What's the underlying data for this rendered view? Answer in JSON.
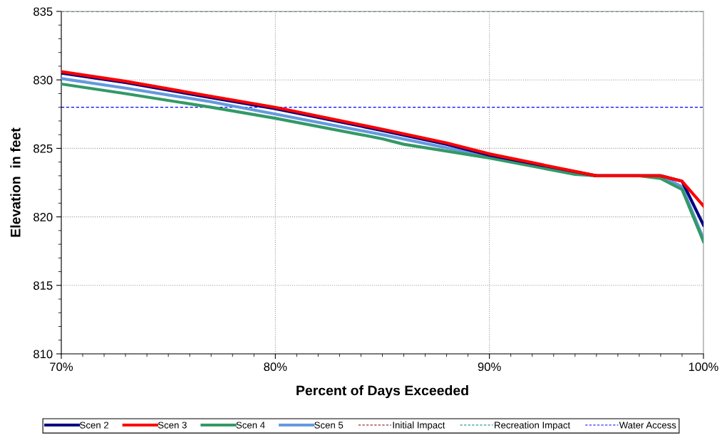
{
  "chart_data": {
    "type": "line",
    "xlabel": "Percent of Days Exceeded",
    "ylabel": "Elevation  in feet",
    "xlim": [
      70,
      100
    ],
    "xticks": [
      {
        "value": 70,
        "label": "70%"
      },
      {
        "value": 80,
        "label": "80%"
      },
      {
        "value": 90,
        "label": "90%"
      },
      {
        "value": 100,
        "label": "100%"
      }
    ],
    "ylim": [
      810,
      835
    ],
    "yticks": [
      810,
      815,
      820,
      825,
      830,
      835
    ],
    "grid": true,
    "legend": "bottom",
    "marker": "none",
    "line_style": "solid",
    "series": [
      {
        "name": "Scen 2",
        "color": "#000080",
        "x": [
          70,
          73,
          77,
          80,
          85,
          88,
          90,
          95,
          98,
          99,
          100
        ],
        "values": [
          830.5,
          829.8,
          828.7,
          827.9,
          826.3,
          825.3,
          824.5,
          823.0,
          823.0,
          822.6,
          819.4
        ]
      },
      {
        "name": "Scen 3",
        "color": "#ff0000",
        "x": [
          70,
          73,
          77,
          80,
          85,
          88,
          90,
          95,
          98,
          99,
          100
        ],
        "values": [
          830.6,
          829.9,
          828.8,
          828.0,
          826.4,
          825.4,
          824.6,
          823.0,
          823.0,
          822.6,
          820.8
        ]
      },
      {
        "name": "Scen 4",
        "color": "#339966",
        "x": [
          70,
          73,
          77,
          80,
          85,
          86,
          90,
          94,
          95,
          97,
          98,
          99,
          100
        ],
        "values": [
          829.7,
          829.0,
          828.0,
          827.2,
          825.7,
          825.3,
          824.3,
          823.1,
          823.0,
          823.0,
          822.8,
          822.0,
          818.2
        ]
      },
      {
        "name": "Scen 5",
        "color": "#6699dd",
        "x": [
          70,
          73,
          77,
          80,
          85,
          90,
          95,
          98,
          99,
          100
        ],
        "values": [
          830.1,
          829.4,
          828.4,
          827.5,
          826.0,
          824.4,
          823.0,
          823.0,
          822.2,
          818.4
        ]
      }
    ],
    "ref_lines": [
      {
        "axis": "y",
        "value": 835,
        "label": "Initial Impact",
        "color": "#800000",
        "line_style": "dashed"
      },
      {
        "axis": "y",
        "value": 835,
        "label": "Recreation Impact",
        "color": "#008080",
        "line_style": "dashed"
      },
      {
        "axis": "y",
        "value": 828,
        "label": "Water Access",
        "color": "#0000ff",
        "line_style": "dashed"
      }
    ]
  }
}
